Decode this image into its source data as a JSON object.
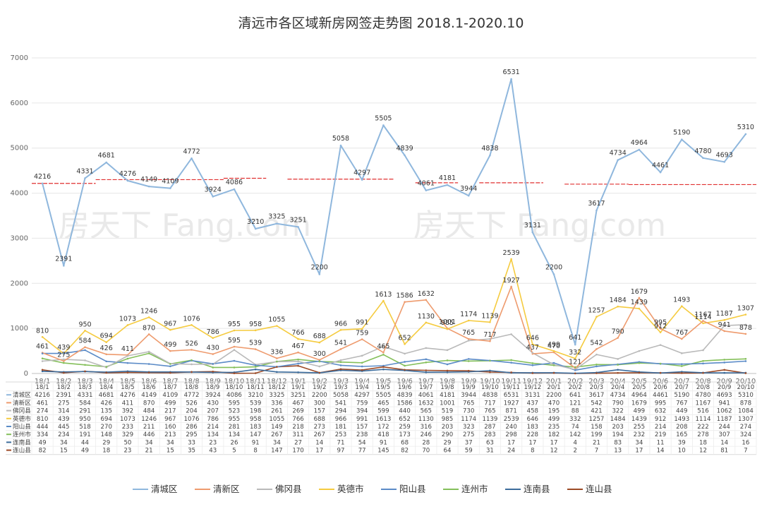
{
  "chart_data": {
    "type": "line",
    "title": "清远市各区域新房网签走势图 2018.1-2020.10",
    "ylim": [
      0,
      7000
    ],
    "y_ticks": [
      0,
      1000,
      2000,
      3000,
      4000,
      5000,
      6000,
      7000
    ],
    "grid": true,
    "legend_position": "bottom",
    "categories": [
      "18/1",
      "18/2",
      "18/3",
      "18/4",
      "18/5",
      "18/6",
      "18/7",
      "18/8",
      "18/9",
      "18/10",
      "18/11",
      "18/12",
      "19/1",
      "19/2",
      "19/3",
      "19/4",
      "19/5",
      "19/6",
      "19/7",
      "19/8",
      "19/9",
      "19/10",
      "19/11",
      "19/12",
      "20/1",
      "20/2",
      "20/3",
      "20/4",
      "20/5",
      "20/6",
      "20/7",
      "20/8",
      "20/9",
      "20/10"
    ],
    "series": [
      {
        "name": "清城区",
        "color": "#8fb7dd",
        "values": [
          4216,
          2391,
          4331,
          4681,
          4276,
          4149,
          4109,
          4772,
          3924,
          4086,
          3210,
          3325,
          3251,
          2200,
          5058,
          4297,
          5505,
          4839,
          4061,
          4181,
          3944,
          4838,
          6531,
          3131,
          2200,
          641,
          3617,
          4734,
          4964,
          4461,
          5190,
          4780,
          4693,
          5310
        ]
      },
      {
        "name": "清新区",
        "color": "#ee9b6e",
        "values": [
          461,
          275,
          584,
          426,
          411,
          870,
          499,
          526,
          430,
          595,
          539,
          336,
          467,
          300,
          541,
          759,
          465,
          1586,
          1632,
          1001,
          765,
          717,
          1927,
          437,
          470,
          121,
          542,
          790,
          1679,
          995,
          767,
          1167,
          941,
          878
        ]
      },
      {
        "name": "佛冈县",
        "color": "#b9b9b9",
        "values": [
          274,
          314,
          291,
          135,
          392,
          484,
          217,
          204,
          207,
          523,
          198,
          261,
          269,
          157,
          294,
          394,
          599,
          440,
          565,
          519,
          730,
          765,
          871,
          458,
          195,
          88,
          421,
          322,
          499,
          632,
          449,
          516,
          1062,
          1084
        ]
      },
      {
        "name": "英德市",
        "color": "#f5cb3f",
        "values": [
          810,
          439,
          950,
          694,
          1073,
          1246,
          967,
          1076,
          786,
          955,
          958,
          1055,
          766,
          688,
          966,
          991,
          1613,
          652,
          1130,
          985,
          1174,
          1139,
          2539,
          646,
          499,
          332,
          1257,
          1484,
          1439,
          912,
          1493,
          1114,
          1187,
          1307
        ]
      },
      {
        "name": "阳山县",
        "color": "#5b8bc7",
        "values": [
          444,
          445,
          518,
          270,
          233,
          211,
          160,
          286,
          214,
          281,
          183,
          149,
          218,
          273,
          181,
          157,
          172,
          259,
          316,
          203,
          323,
          287,
          240,
          183,
          235,
          74,
          158,
          203,
          255,
          214,
          208,
          222,
          244,
          274
        ]
      },
      {
        "name": "连州市",
        "color": "#84bf5a",
        "values": [
          334,
          234,
          191,
          148,
          329,
          446,
          213,
          295,
          134,
          134,
          147,
          267,
          311,
          267,
          253,
          238,
          418,
          173,
          246,
          290,
          275,
          283,
          298,
          228,
          182,
          142,
          199,
          194,
          232,
          219,
          165,
          278,
          307,
          324
        ]
      },
      {
        "name": "连南县",
        "color": "#3c6c9c",
        "values": [
          49,
          34,
          44,
          29,
          50,
          34,
          34,
          33,
          23,
          26,
          91,
          34,
          27,
          14,
          71,
          54,
          91,
          68,
          28,
          29,
          37,
          63,
          17,
          17,
          17,
          4,
          21,
          83,
          34,
          11,
          39,
          18,
          14,
          16
        ]
      },
      {
        "name": "连山县",
        "color": "#9c4a26",
        "values": [
          82,
          15,
          49,
          18,
          23,
          21,
          15,
          35,
          43,
          5,
          8,
          147,
          170,
          17,
          97,
          77,
          145,
          82,
          70,
          64,
          59,
          31,
          24,
          8,
          12,
          2,
          7,
          13,
          17,
          14,
          10,
          12,
          81,
          7
        ]
      }
    ]
  },
  "watermark": "房天下 Fang.com",
  "reference_line_color": "#e03030"
}
